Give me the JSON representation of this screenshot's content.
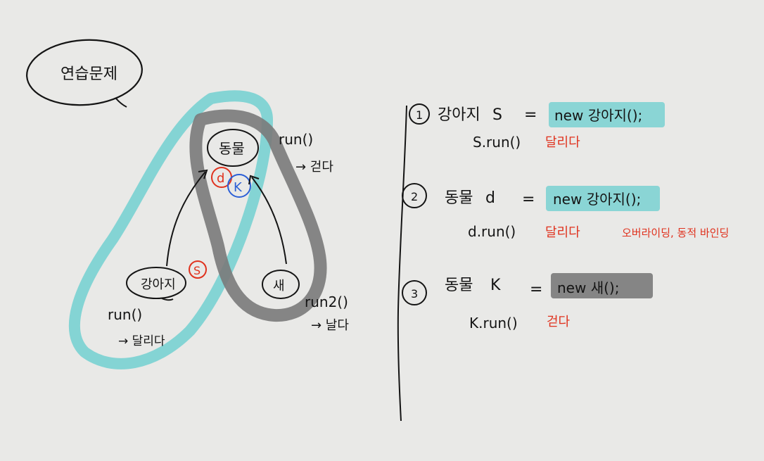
{
  "title": "연습문제",
  "diagram": {
    "parent": "동물",
    "child_dog": "강아지",
    "child_bird": "새",
    "ref_d": "d",
    "ref_k": "K",
    "ref_s": "S",
    "parent_method": "run()",
    "parent_method_result": "→ 걷다",
    "dog_method": "run()",
    "dog_method_result": "→ 달리다",
    "bird_method": "run2()",
    "bird_method_result": "→ 날다"
  },
  "items": [
    {
      "number": "1",
      "decl_type": "강아지",
      "decl_var": "S",
      "equals": "=",
      "expr": "new 강아지();",
      "call": "S.run()",
      "result": "달리다",
      "note": ""
    },
    {
      "number": "2",
      "decl_type": "동물",
      "decl_var": "d",
      "equals": "=",
      "expr": "new 강아지();",
      "call": "d.run()",
      "result": "달리다",
      "note": "오버라이딩, 동적 바인딩"
    },
    {
      "number": "3",
      "decl_type": "동물",
      "decl_var": "K",
      "equals": "=",
      "expr": "new 새();",
      "call": "K.run()",
      "result": "걷다",
      "note": ""
    }
  ],
  "colors": {
    "ink": "#141414",
    "red": "#e0321e",
    "blue": "#2b5fd6",
    "cyan_highlight": "#79d1d1",
    "gray_highlight": "#7a7a7a",
    "background": "#e9e9e7"
  }
}
